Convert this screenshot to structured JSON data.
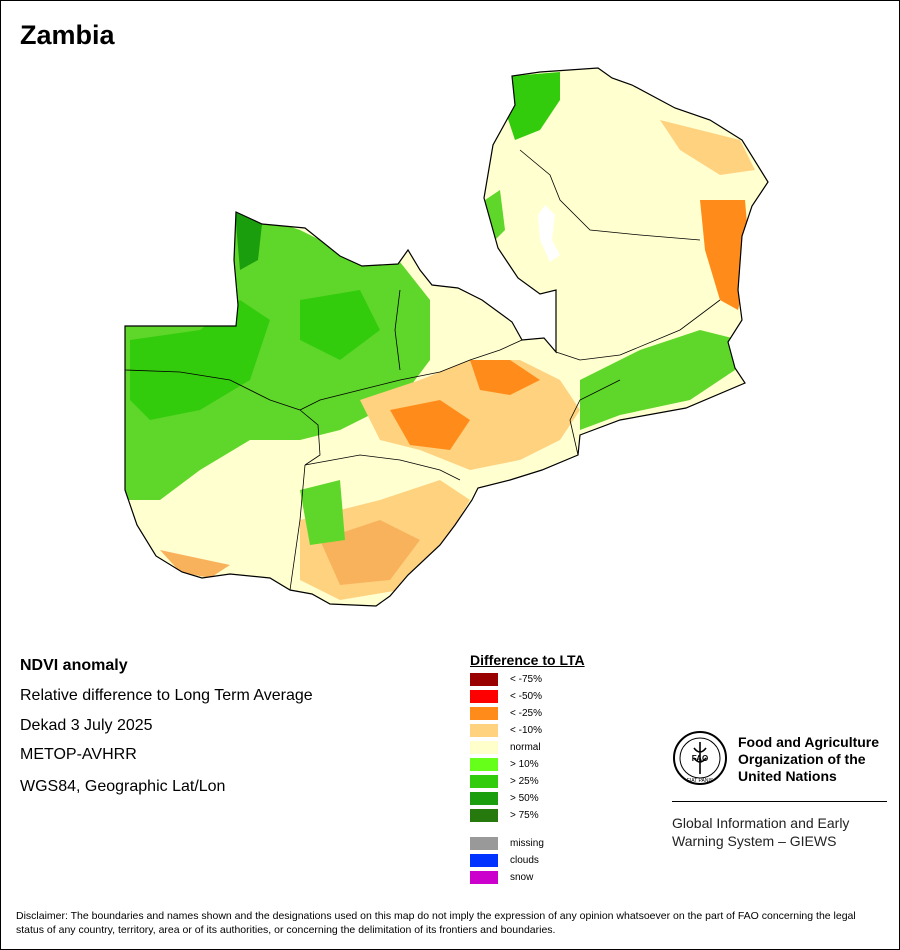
{
  "title": "Zambia",
  "info": {
    "product": "NDVI anomaly",
    "description": "Relative difference to Long Term Average",
    "period": "Dekad 3 July 2025",
    "sensor": "METOP-AVHRR",
    "projection": "WGS84, Geographic Lat/Lon"
  },
  "legend": {
    "title": "Difference to LTA",
    "classes": [
      {
        "label": "< -75%",
        "color": "#990000"
      },
      {
        "label": "< -50%",
        "color": "#ff0000"
      },
      {
        "label": "< -25%",
        "color": "#ff8c1a"
      },
      {
        "label": "< -10%",
        "color": "#ffd27f"
      },
      {
        "label": "normal",
        "color": "#ffffcc"
      },
      {
        "label": "> 10%",
        "color": "#66ff1a"
      },
      {
        "label": "> 25%",
        "color": "#33cc0d"
      },
      {
        "label": "> 50%",
        "color": "#1a9e0d"
      },
      {
        "label": "> 75%",
        "color": "#267a0d"
      },
      {
        "label": "missing",
        "color": "#999999"
      },
      {
        "label": "clouds",
        "color": "#0033ff"
      },
      {
        "label": "snow",
        "color": "#cc00cc"
      }
    ]
  },
  "organization": {
    "emblem_text": "FAO",
    "emblem_motto": "FIAT PANIS",
    "name": "Food and Agriculture Organization of the United Nations",
    "system": "Global Information and Early Warning System – GIEWS"
  },
  "disclaimer": "Disclaimer: The boundaries and names shown and the designations used on this map do not imply the expression of any opinion whatsoever on the part of FAO concerning the legal status of any country, territory, area or of its authorities, or concerning the delimitation of its frontiers and boundaries."
}
